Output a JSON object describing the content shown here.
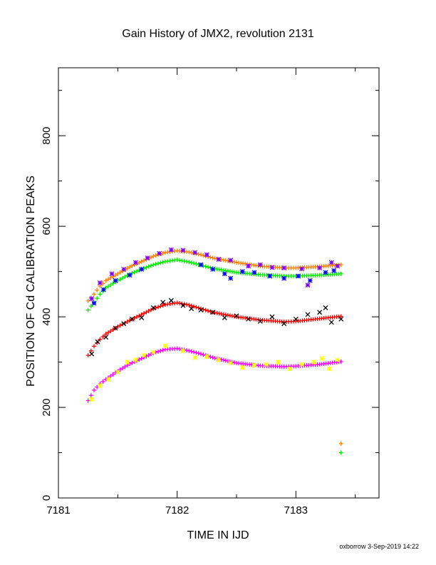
{
  "chart_data": {
    "type": "scatter",
    "title": "Gain History of JMX2, revolution 2131",
    "xlabel": "TIME IN IJD",
    "ylabel": "POSITION OF Cd CALIBRATION PEAKS",
    "xlim": [
      7181.0,
      7183.7
    ],
    "ylim": [
      0,
      950
    ],
    "x_ticks": [
      7181,
      7182,
      7183
    ],
    "y_ticks": [
      0,
      200,
      400,
      600,
      800
    ],
    "grid": false,
    "footer": "oxborrow  3-Sep-2019 14:22",
    "series": [
      {
        "color": "#ff8000",
        "marker": "plus",
        "role": "fit",
        "x": [
          7181.25,
          7181.3,
          7181.35,
          7181.4,
          7181.5,
          7181.6,
          7181.7,
          7181.8,
          7181.9,
          7182.0,
          7182.1,
          7182.2,
          7182.3,
          7182.5,
          7182.7,
          7182.9,
          7183.0,
          7183.2,
          7183.38
        ],
        "y": [
          435,
          450,
          468,
          480,
          495,
          510,
          522,
          534,
          542,
          546,
          543,
          537,
          530,
          520,
          512,
          508,
          508,
          511,
          515
        ]
      },
      {
        "color": "#00ee00",
        "marker": "plus",
        "role": "fit",
        "x": [
          7181.25,
          7181.3,
          7181.35,
          7181.4,
          7181.5,
          7181.6,
          7181.7,
          7181.8,
          7181.9,
          7182.0,
          7182.1,
          7182.2,
          7182.3,
          7182.5,
          7182.7,
          7182.9,
          7183.0,
          7183.2,
          7183.38
        ],
        "y": [
          415,
          432,
          450,
          464,
          480,
          494,
          505,
          515,
          522,
          526,
          521,
          514,
          507,
          498,
          493,
          490,
          490,
          492,
          495
        ]
      },
      {
        "color": "#ff0000",
        "marker": "plus",
        "role": "fit",
        "x": [
          7181.25,
          7181.3,
          7181.35,
          7181.4,
          7181.5,
          7181.6,
          7181.7,
          7181.8,
          7181.9,
          7182.0,
          7182.1,
          7182.2,
          7182.3,
          7182.5,
          7182.7,
          7182.9,
          7183.0,
          7183.2,
          7183.38
        ],
        "y": [
          315,
          335,
          350,
          362,
          378,
          392,
          405,
          418,
          427,
          431,
          426,
          418,
          410,
          400,
          393,
          389,
          390,
          396,
          401
        ]
      },
      {
        "color": "#ff00ff",
        "marker": "plus",
        "role": "fit",
        "x": [
          7181.25,
          7181.3,
          7181.35,
          7181.4,
          7181.5,
          7181.6,
          7181.7,
          7181.8,
          7181.9,
          7182.0,
          7182.1,
          7182.2,
          7182.3,
          7182.5,
          7182.7,
          7182.9,
          7183.0,
          7183.2,
          7183.38
        ],
        "y": [
          215,
          238,
          252,
          262,
          280,
          296,
          308,
          320,
          328,
          330,
          325,
          318,
          310,
          298,
          292,
          290,
          291,
          295,
          301
        ]
      },
      {
        "color": "#8000ff",
        "marker": "star",
        "role": "data",
        "x": [
          7181.28,
          7181.35,
          7181.45,
          7181.55,
          7181.65,
          7181.75,
          7181.85,
          7181.95,
          7182.05,
          7182.15,
          7182.25,
          7182.35,
          7182.45,
          7182.6,
          7182.7,
          7182.8,
          7182.9,
          7183.05,
          7183.1,
          7183.2,
          7183.3,
          7183.35
        ],
        "y": [
          440,
          475,
          495,
          505,
          520,
          530,
          540,
          548,
          547,
          542,
          537,
          527,
          525,
          512,
          515,
          509,
          508,
          506,
          470,
          508,
          520,
          512
        ]
      },
      {
        "color": "#0000ff",
        "marker": "star",
        "role": "data",
        "x": [
          7181.3,
          7181.38,
          7181.48,
          7181.6,
          7181.7,
          7182.2,
          7182.3,
          7182.4,
          7182.45,
          7182.55,
          7182.65,
          7182.78,
          7182.9,
          7183.02,
          7183.12,
          7183.25,
          7183.32
        ],
        "y": [
          430,
          460,
          480,
          492,
          505,
          515,
          505,
          495,
          485,
          500,
          498,
          490,
          485,
          490,
          480,
          498,
          502
        ]
      },
      {
        "color": "#000000",
        "marker": "cross",
        "role": "data",
        "x": [
          7181.28,
          7181.33,
          7181.4,
          7181.48,
          7181.55,
          7181.62,
          7181.7,
          7181.8,
          7181.88,
          7181.95,
          7182.05,
          7182.12,
          7182.2,
          7182.3,
          7182.4,
          7182.5,
          7182.6,
          7182.7,
          7182.8,
          7182.9,
          7183.0,
          7183.1,
          7183.2,
          7183.25,
          7183.3,
          7183.38
        ],
        "y": [
          318,
          345,
          355,
          375,
          385,
          395,
          398,
          420,
          432,
          436,
          425,
          418,
          415,
          410,
          398,
          402,
          395,
          390,
          400,
          385,
          395,
          405,
          410,
          420,
          388,
          395
        ]
      },
      {
        "color": "#ffff00",
        "marker": "star",
        "role": "data",
        "x": [
          7181.28,
          7181.35,
          7181.42,
          7181.5,
          7181.58,
          7181.65,
          7181.72,
          7181.8,
          7181.9,
          7182.05,
          7182.15,
          7182.25,
          7182.35,
          7182.45,
          7182.55,
          7182.65,
          7182.75,
          7182.85,
          7182.95,
          7183.05,
          7183.15,
          7183.22,
          7183.28,
          7183.35
        ],
        "y": [
          218,
          248,
          262,
          278,
          300,
          305,
          315,
          322,
          336,
          325,
          310,
          312,
          305,
          298,
          288,
          293,
          295,
          300,
          285,
          295,
          300,
          308,
          285,
          305
        ]
      },
      {
        "color": "#ff8000",
        "marker": "plus",
        "role": "extra",
        "x": [
          7183.38
        ],
        "y": [
          120
        ]
      },
      {
        "color": "#00ee00",
        "marker": "plus",
        "role": "extra",
        "x": [
          7183.38
        ],
        "y": [
          100
        ]
      }
    ]
  }
}
